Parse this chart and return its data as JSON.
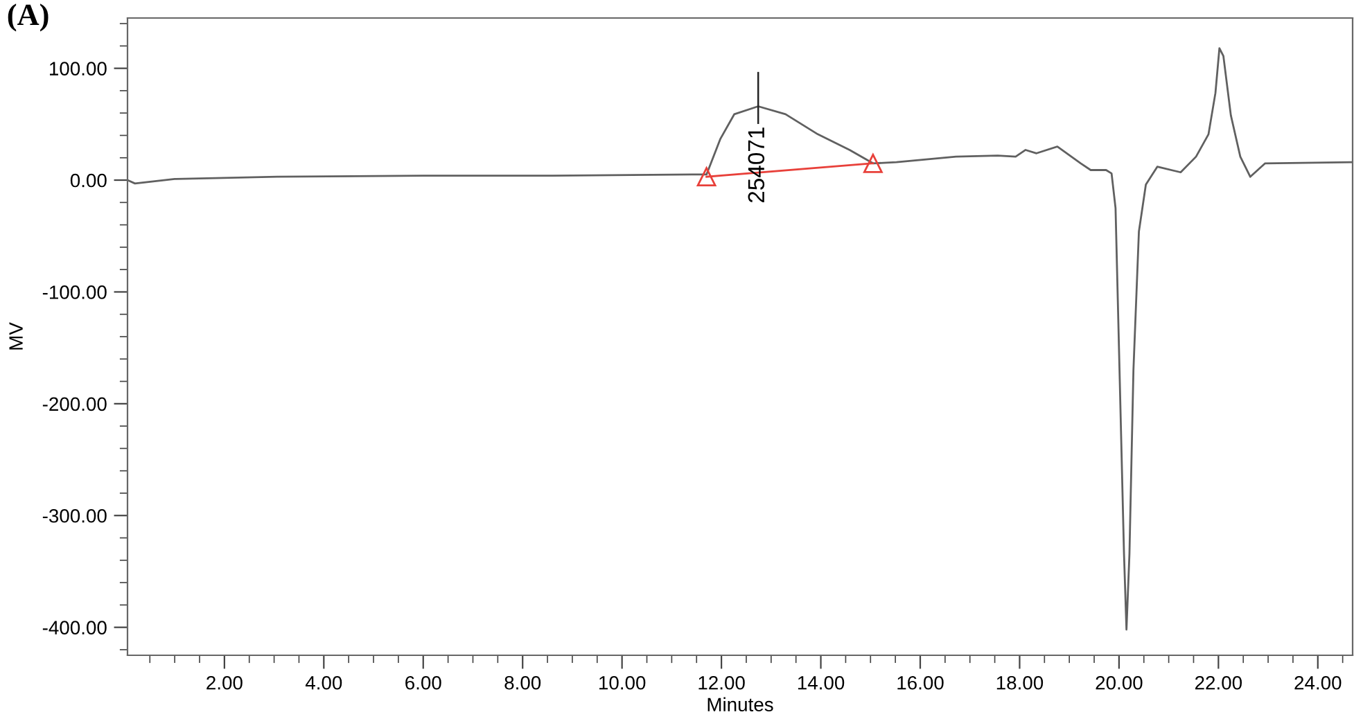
{
  "chart_data": {
    "type": "line",
    "xlabel": "Minutes",
    "ylabel": "MV",
    "annotations": [
      "(A)",
      {
        "text": "254071",
        "x": 12.74,
        "y": 66
      }
    ],
    "series": [
      {
        "color": "#606060",
        "x": [
          0.05,
          0.2,
          1.0,
          3.06,
          6.0,
          8.6,
          11.4,
          11.7,
          11.98,
          12.26,
          12.74,
          13.29,
          13.94,
          14.58,
          15.05,
          15.52,
          16.72,
          17.56,
          17.92,
          18.12,
          18.34,
          18.76,
          19.23,
          19.43,
          19.74,
          19.85,
          19.93,
          20.01,
          20.1,
          20.15,
          20.21,
          20.29,
          20.4,
          20.54,
          20.77,
          21.24,
          21.55,
          21.8,
          21.94,
          22.02,
          22.1,
          22.25,
          22.44,
          22.64,
          22.94,
          24.68
        ],
        "values": [
          0,
          -3,
          1,
          3,
          4,
          4,
          5,
          5,
          37,
          59,
          66,
          59,
          41,
          27,
          15,
          16,
          21,
          22,
          21,
          27,
          24,
          30,
          15,
          9,
          9,
          6,
          -25,
          -170,
          -334,
          -402,
          -334,
          -170,
          -46,
          -4,
          12,
          7,
          21,
          41,
          78,
          118,
          111,
          58,
          21,
          3,
          15,
          16
        ]
      },
      {
        "color": "#e8403a",
        "marker": "triangle",
        "x": [
          11.7,
          15.05
        ],
        "values": [
          3,
          15
        ]
      }
    ],
    "xlim": [
      0.05,
      24.7
    ],
    "ylim": [
      -425,
      145
    ],
    "xticks": [
      {
        "value": 0.5,
        "label": null
      },
      {
        "value": 1,
        "label": null
      },
      {
        "value": 1.5,
        "label": null
      },
      {
        "value": 2,
        "label": "2.00"
      },
      {
        "value": 2.5,
        "label": null
      },
      {
        "value": 3,
        "label": null
      },
      {
        "value": 3.5,
        "label": null
      },
      {
        "value": 4,
        "label": "4.00"
      },
      {
        "value": 4.5,
        "label": null
      },
      {
        "value": 5,
        "label": null
      },
      {
        "value": 5.5,
        "label": null
      },
      {
        "value": 6,
        "label": "6.00"
      },
      {
        "value": 6.5,
        "label": null
      },
      {
        "value": 7,
        "label": null
      },
      {
        "value": 7.5,
        "label": null
      },
      {
        "value": 8,
        "label": "8.00"
      },
      {
        "value": 8.5,
        "label": null
      },
      {
        "value": 9,
        "label": null
      },
      {
        "value": 9.5,
        "label": null
      },
      {
        "value": 10,
        "label": "10.00"
      },
      {
        "value": 10.5,
        "label": null
      },
      {
        "value": 11,
        "label": null
      },
      {
        "value": 11.5,
        "label": null
      },
      {
        "value": 12,
        "label": "12.00"
      },
      {
        "value": 12.5,
        "label": null
      },
      {
        "value": 13,
        "label": null
      },
      {
        "value": 13.5,
        "label": null
      },
      {
        "value": 14,
        "label": "14.00"
      },
      {
        "value": 14.5,
        "label": null
      },
      {
        "value": 15,
        "label": null
      },
      {
        "value": 15.5,
        "label": null
      },
      {
        "value": 16,
        "label": "16.00"
      },
      {
        "value": 16.5,
        "label": null
      },
      {
        "value": 17,
        "label": null
      },
      {
        "value": 17.5,
        "label": null
      },
      {
        "value": 18,
        "label": "18.00"
      },
      {
        "value": 18.5,
        "label": null
      },
      {
        "value": 19,
        "label": null
      },
      {
        "value": 19.5,
        "label": null
      },
      {
        "value": 20,
        "label": "20.00"
      },
      {
        "value": 20.5,
        "label": null
      },
      {
        "value": 21,
        "label": null
      },
      {
        "value": 21.5,
        "label": null
      },
      {
        "value": 22,
        "label": "22.00"
      },
      {
        "value": 22.5,
        "label": null
      },
      {
        "value": 23,
        "label": null
      },
      {
        "value": 23.5,
        "label": null
      },
      {
        "value": 24,
        "label": "24.00"
      },
      {
        "value": 24.5,
        "label": null
      }
    ],
    "yticks": [
      {
        "value": -420,
        "label": null
      },
      {
        "value": -400,
        "label": "-400.00"
      },
      {
        "value": -380,
        "label": null
      },
      {
        "value": -360,
        "label": null
      },
      {
        "value": -340,
        "label": null
      },
      {
        "value": -320,
        "label": null
      },
      {
        "value": -300,
        "label": "-300.00"
      },
      {
        "value": -280,
        "label": null
      },
      {
        "value": -260,
        "label": null
      },
      {
        "value": -240,
        "label": null
      },
      {
        "value": -220,
        "label": null
      },
      {
        "value": -200,
        "label": "-200.00"
      },
      {
        "value": -180,
        "label": null
      },
      {
        "value": -160,
        "label": null
      },
      {
        "value": -140,
        "label": null
      },
      {
        "value": -120,
        "label": null
      },
      {
        "value": -100,
        "label": "-100.00"
      },
      {
        "value": -80,
        "label": null
      },
      {
        "value": -60,
        "label": null
      },
      {
        "value": -40,
        "label": null
      },
      {
        "value": -20,
        "label": null
      },
      {
        "value": 0,
        "label": "0.00"
      },
      {
        "value": 20,
        "label": null
      },
      {
        "value": 40,
        "label": null
      },
      {
        "value": 60,
        "label": null
      },
      {
        "value": 80,
        "label": null
      },
      {
        "value": 100,
        "label": "100.00"
      },
      {
        "value": 120,
        "label": null
      },
      {
        "value": 140,
        "label": null
      }
    ]
  }
}
